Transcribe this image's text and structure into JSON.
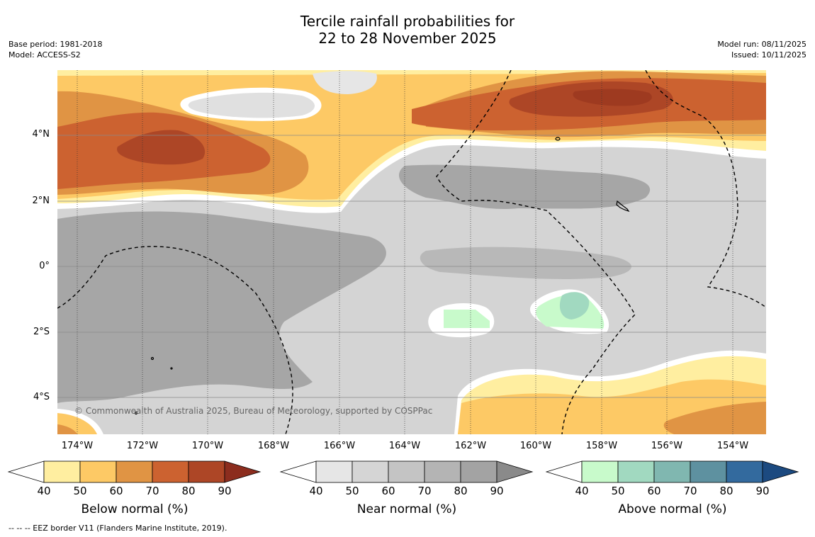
{
  "title": {
    "line1": "Tercile rainfall probabilities for",
    "line2": "22 to 28 November 2025"
  },
  "meta_left": {
    "base_period": "Base period: 1981-2018",
    "model": "Model: ACCESS-S2"
  },
  "meta_right": {
    "model_run": "Model run: 08/11/2025",
    "issued": "Issued: 10/11/2025"
  },
  "latitude_labels": [
    "4°N",
    "2°N",
    "0°",
    "2°S",
    "4°S"
  ],
  "longitude_labels": [
    "174°W",
    "172°W",
    "170°W",
    "168°W",
    "166°W",
    "164°W",
    "162°W",
    "160°W",
    "158°W",
    "156°W",
    "154°W"
  ],
  "copyright": "© Commonwealth of Australia 2025, Bureau of Meteorology, supported by COSPPac",
  "colorbars": [
    {
      "label": "Below normal (%)",
      "ticks": [
        "40",
        "50",
        "60",
        "70",
        "80",
        "90"
      ],
      "colors": [
        "#ffeea0",
        "#fdc965",
        "#e09444",
        "#cc6230",
        "#ad4626",
        "#8c2d1e"
      ]
    },
    {
      "label": "Near normal (%)",
      "ticks": [
        "40",
        "50",
        "60",
        "70",
        "80",
        "90"
      ],
      "colors": [
        "#e6e6e6",
        "#d5d5d5",
        "#c4c4c4",
        "#b4b4b4",
        "#a3a3a3",
        "#8a8a8a"
      ]
    },
    {
      "label": "Above normal (%)",
      "ticks": [
        "40",
        "50",
        "60",
        "70",
        "80",
        "90"
      ],
      "colors": [
        "#c8facb",
        "#a1d9c0",
        "#80b7b0",
        "#5e91a0",
        "#336a9e",
        "#1c4a80"
      ]
    }
  ],
  "footer": "--  --  -- EEZ border V11 (Flanders Marine Institute, 2019)."
}
